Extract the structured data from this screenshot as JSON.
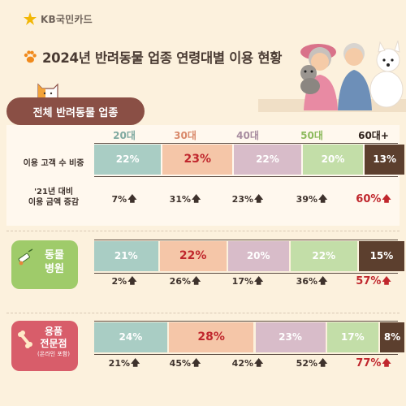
{
  "header": {
    "brand": "KB국민카드",
    "title": "2024년 반려동물 업종 연령대별 이용 현황"
  },
  "section_all": {
    "tab_label": "전체 반려동물 업종",
    "row_share_label": "이용 고객 수 비중",
    "row_change_label_line1": "'21년 대비",
    "row_change_label_line2": "이용 금액 증감"
  },
  "section_hospital": {
    "label_line1": "동물",
    "label_line2": "병원"
  },
  "section_supplies": {
    "label_line1": "용품",
    "label_line2": "전문점",
    "label_sub": "(온라인 포함)"
  },
  "colors": {
    "20s": "#A9CDC4",
    "30s": "#F5C6A8",
    "40s": "#D8BCC9",
    "50s": "#C3DEA8",
    "60s": "#5C3F2E",
    "highlight": "#C0272D",
    "tab": "#8A4F45",
    "hospital_badge": "#9FCB6A",
    "supplies_badge": "#D85D6A"
  },
  "chart_data": [
    {
      "type": "bar",
      "title": "전체 반려동물 업종",
      "categories": [
        "20대",
        "30대",
        "40대",
        "50대",
        "60대+"
      ],
      "series": [
        {
          "name": "이용 고객 수 비중",
          "values": [
            22,
            23,
            22,
            20,
            13
          ],
          "labels": [
            "22%",
            "23%",
            "22%",
            "20%",
            "13%"
          ]
        },
        {
          "name": "'21년 대비 이용 금액 증감",
          "values": [
            7,
            31,
            23,
            39,
            60
          ],
          "labels": [
            "7%",
            "31%",
            "23%",
            "39%",
            "60%"
          ]
        }
      ]
    },
    {
      "type": "bar",
      "title": "동물 병원",
      "categories": [
        "20대",
        "30대",
        "40대",
        "50대",
        "60대+"
      ],
      "series": [
        {
          "values": [
            21,
            22,
            20,
            22,
            15
          ],
          "labels": [
            "21%",
            "22%",
            "20%",
            "22%",
            "15%"
          ]
        },
        {
          "values": [
            2,
            26,
            17,
            36,
            57
          ],
          "labels": [
            "2%",
            "26%",
            "17%",
            "36%",
            "57%"
          ]
        }
      ]
    },
    {
      "type": "bar",
      "title": "용품 전문점 (온라인 포함)",
      "categories": [
        "20대",
        "30대",
        "40대",
        "50대",
        "60대+"
      ],
      "series": [
        {
          "values": [
            24,
            28,
            23,
            17,
            8
          ],
          "labels": [
            "24%",
            "28%",
            "23%",
            "17%",
            "8%"
          ]
        },
        {
          "values": [
            21,
            45,
            42,
            52,
            77
          ],
          "labels": [
            "21%",
            "45%",
            "42%",
            "52%",
            "77%"
          ]
        }
      ]
    }
  ]
}
